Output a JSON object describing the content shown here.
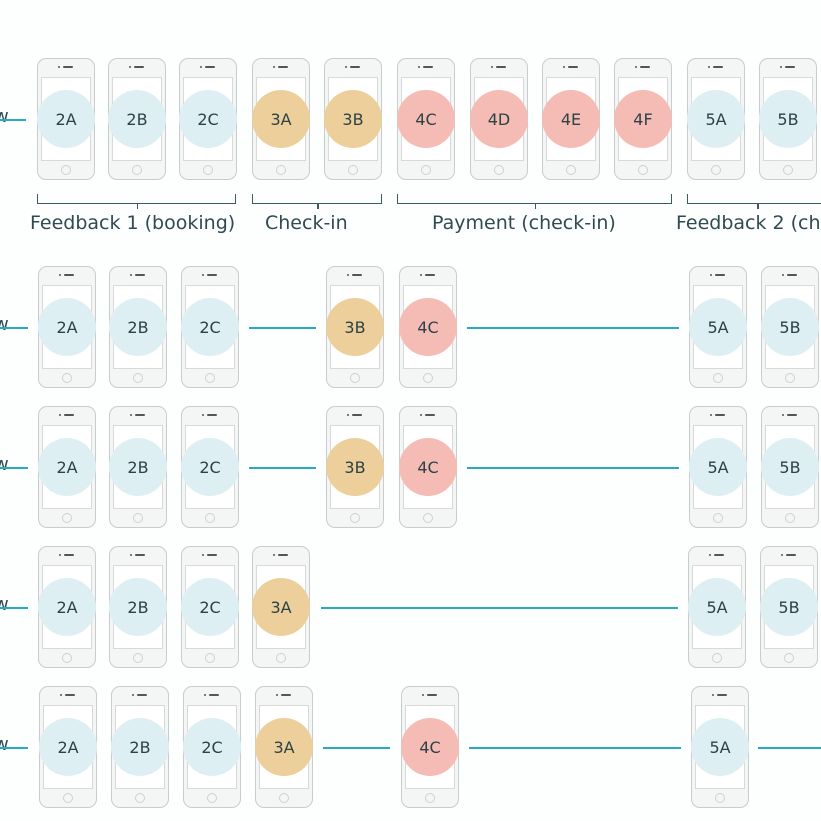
{
  "colors": {
    "feedback": "#deeff4",
    "checkin": "#eccf9b",
    "payment": "#f5bcb5",
    "connector": "#2aa9c2",
    "text": "#2c4246"
  },
  "row_label_fragment": "w",
  "groups": [
    {
      "label": "Feedback 1 (booking)"
    },
    {
      "label": "Check-in"
    },
    {
      "label": "Payment (check-in)"
    },
    {
      "label": "Feedback 2 (ch"
    }
  ],
  "rows": [
    {
      "label": "w",
      "screens": [
        {
          "id": "2A",
          "type": "feedback"
        },
        {
          "id": "2B",
          "type": "feedback"
        },
        {
          "id": "2C",
          "type": "feedback"
        },
        {
          "id": "3A",
          "type": "checkin"
        },
        {
          "id": "3B",
          "type": "checkin"
        },
        {
          "id": "4C",
          "type": "payment"
        },
        {
          "id": "4D",
          "type": "payment"
        },
        {
          "id": "4E",
          "type": "payment"
        },
        {
          "id": "4F",
          "type": "payment"
        },
        {
          "id": "5A",
          "type": "feedback"
        },
        {
          "id": "5B",
          "type": "feedback"
        }
      ]
    },
    {
      "label": "w",
      "screens": [
        {
          "id": "2A",
          "type": "feedback"
        },
        {
          "id": "2B",
          "type": "feedback"
        },
        {
          "id": "2C",
          "type": "feedback"
        },
        {
          "id": "3B",
          "type": "checkin"
        },
        {
          "id": "4C",
          "type": "payment"
        },
        {
          "id": "5A",
          "type": "feedback"
        },
        {
          "id": "5B",
          "type": "feedback"
        }
      ]
    },
    {
      "label": "w",
      "screens": [
        {
          "id": "2A",
          "type": "feedback"
        },
        {
          "id": "2B",
          "type": "feedback"
        },
        {
          "id": "2C",
          "type": "feedback"
        },
        {
          "id": "3B",
          "type": "checkin"
        },
        {
          "id": "4C",
          "type": "payment"
        },
        {
          "id": "5A",
          "type": "feedback"
        },
        {
          "id": "5B",
          "type": "feedback"
        }
      ]
    },
    {
      "label": "w",
      "screens": [
        {
          "id": "2A",
          "type": "feedback"
        },
        {
          "id": "2B",
          "type": "feedback"
        },
        {
          "id": "2C",
          "type": "feedback"
        },
        {
          "id": "3A",
          "type": "checkin"
        },
        {
          "id": "5A",
          "type": "feedback"
        },
        {
          "id": "5B",
          "type": "feedback"
        }
      ]
    },
    {
      "label": "w",
      "screens": [
        {
          "id": "2A",
          "type": "feedback"
        },
        {
          "id": "2B",
          "type": "feedback"
        },
        {
          "id": "2C",
          "type": "feedback"
        },
        {
          "id": "3A",
          "type": "checkin"
        },
        {
          "id": "4C",
          "type": "payment"
        },
        {
          "id": "5A",
          "type": "feedback"
        }
      ]
    }
  ]
}
